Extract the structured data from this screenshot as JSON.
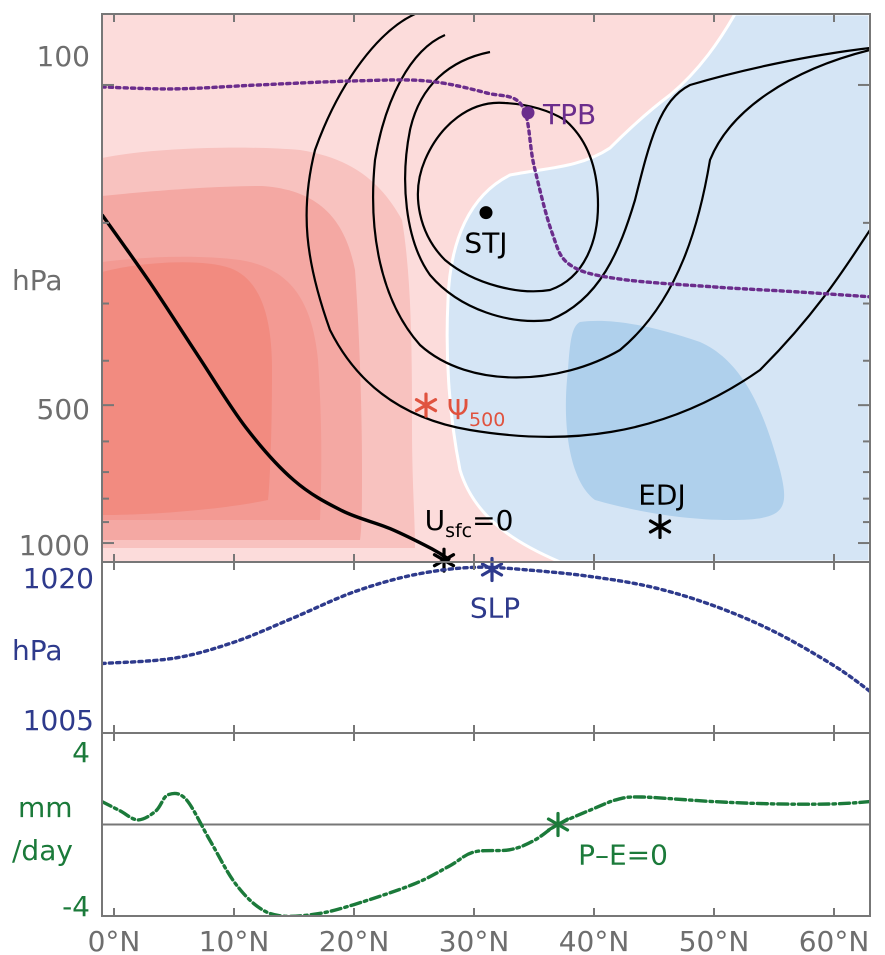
{
  "chart_data": [
    {
      "panel": "upper",
      "type": "contour",
      "ylabel": "hPa",
      "y_scale": "log",
      "y_inverted": true,
      "xlim": [
        -1,
        63
      ],
      "ylim": [
        1100,
        70
      ],
      "y_ticks": [
        {
          "value": 100,
          "label": "100"
        },
        {
          "value": 500,
          "label": "500"
        },
        {
          "value": 1000,
          "label": "1000"
        }
      ],
      "x_ticks": [
        0,
        10,
        20,
        30,
        40,
        50,
        60
      ],
      "fill_colors": {
        "positive": [
          "#fcdcdb",
          "#f8c2bf",
          "#f4a8a3",
          "#f28b80"
        ],
        "negative": [
          "#d5e5f5",
          "#afd0ec"
        ]
      },
      "zonal_wind_contours": [
        {
          "name": "outer",
          "points": [
            [
              8.5,
              70
            ],
            [
              1.5,
              120
            ],
            [
              0,
              170
            ],
            [
              1.5,
              240
            ],
            [
              6,
              330
            ],
            [
              11,
              430
            ],
            [
              17,
              560
            ],
            [
              24,
              700
            ],
            [
              27,
              840
            ],
            [
              28,
              900
            ]
          ]
        },
        {
          "name": "jet",
          "points": [
            [
              28,
              900
            ],
            [
              25.5,
              470
            ],
            [
              24,
              290
            ],
            [
              24.5,
              180
            ],
            [
              26.5,
              115
            ],
            [
              28.5,
              82
            ],
            [
              31,
              70
            ]
          ]
        }
      ],
      "series": [
        {
          "name": "TPB",
          "color": "#6b2d8c",
          "style": "dotted",
          "points": [
            [
              -1,
              101
            ],
            [
              5,
              102
            ],
            [
              12,
              100
            ],
            [
              20,
              98
            ],
            [
              26,
              98
            ],
            [
              31,
              104
            ],
            [
              34,
              111
            ],
            [
              35,
              150
            ],
            [
              36.5,
              210
            ],
            [
              38,
              247
            ],
            [
              42,
              265
            ],
            [
              50,
              276
            ],
            [
              56,
              282
            ],
            [
              63,
              290
            ]
          ]
        },
        {
          "name": "U_sfc=0",
          "color": "#000000",
          "style": "solid",
          "points": [
            [
              -1,
              192
            ],
            [
              3,
              270
            ],
            [
              7,
              390
            ],
            [
              11,
              560
            ],
            [
              15,
              730
            ],
            [
              19,
              850
            ],
            [
              23,
              930
            ],
            [
              26.5,
              1030
            ],
            [
              28,
              1090
            ]
          ]
        }
      ],
      "markers": [
        {
          "name": "TPB",
          "label": "TPB",
          "x": 34.5,
          "y": 115,
          "color": "#6b2d8c",
          "symbol": "dot"
        },
        {
          "name": "STJ",
          "label": "STJ",
          "x": 31,
          "y": 190,
          "color": "#000000",
          "symbol": "dot"
        },
        {
          "name": "Psi500",
          "label": "Ψ",
          "sub": "500",
          "x": 26,
          "y": 500,
          "color": "#e0533f",
          "symbol": "asterisk"
        },
        {
          "name": "EDJ",
          "label": "EDJ",
          "x": 45.5,
          "y": 920,
          "color": "#000000",
          "symbol": "asterisk"
        },
        {
          "name": "Usfc0",
          "label": "U",
          "sub": "sfc",
          "suffix": "=0",
          "x": 27.5,
          "y": 1090,
          "color": "#000000",
          "symbol": "asterisk"
        }
      ]
    },
    {
      "panel": "middle",
      "type": "line",
      "ylabel": "hPa",
      "ylim": [
        1005,
        1021
      ],
      "y_ticks": [
        1020,
        1005
      ],
      "color": "#2e3a8c",
      "series": [
        {
          "name": "SLP",
          "style": "dotted",
          "points": [
            [
              -1,
              1011.5
            ],
            [
              5,
              1012
            ],
            [
              10,
              1013.5
            ],
            [
              15,
              1015.8
            ],
            [
              20,
              1018.2
            ],
            [
              25,
              1019.8
            ],
            [
              30,
              1020.5
            ],
            [
              35,
              1020.2
            ],
            [
              40,
              1019.6
            ],
            [
              45,
              1018.6
            ],
            [
              50,
              1016.9
            ],
            [
              55,
              1014.5
            ],
            [
              60,
              1011.3
            ],
            [
              63,
              1008.9
            ]
          ]
        }
      ],
      "marker": {
        "label": "SLP",
        "x": 31.5,
        "y": 1020.3,
        "symbol": "asterisk"
      }
    },
    {
      "panel": "lower",
      "type": "line",
      "ylabel": "mm/day",
      "ylim": [
        -4,
        4
      ],
      "y_ticks": [
        4,
        -4
      ],
      "color": "#1b7a3a",
      "series": [
        {
          "name": "P-E",
          "style": "dashdot",
          "points": [
            [
              -1,
              1
            ],
            [
              0.5,
              0.6
            ],
            [
              2,
              0.2
            ],
            [
              3.5,
              0.6
            ],
            [
              4.5,
              1.3
            ],
            [
              6,
              1.1
            ],
            [
              8,
              -0.7
            ],
            [
              10,
              -2.5
            ],
            [
              12,
              -3.6
            ],
            [
              14,
              -4
            ],
            [
              17,
              -3.9
            ],
            [
              20,
              -3.5
            ],
            [
              25,
              -2.6
            ],
            [
              28,
              -1.8
            ],
            [
              30,
              -1.2
            ],
            [
              33,
              -1.1
            ],
            [
              35,
              -0.7
            ],
            [
              37,
              0
            ],
            [
              40,
              0.7
            ],
            [
              42,
              1.1
            ],
            [
              44,
              1.2
            ],
            [
              50,
              1
            ],
            [
              55,
              0.9
            ],
            [
              60,
              0.9
            ],
            [
              63,
              1
            ]
          ]
        }
      ],
      "zero_line": true,
      "marker": {
        "label": "P–E=0",
        "x": 37,
        "y": 0,
        "symbol": "asterisk"
      }
    }
  ],
  "labels": {
    "upper_y_100": "100",
    "upper_y_500": "500",
    "upper_y_1000": "1000",
    "upper_unit": "hPa",
    "mid_y_top": "1020",
    "mid_y_bottom": "1005",
    "mid_unit": "hPa",
    "low_y_top": "4",
    "low_y_bottom": "-4",
    "low_unit_1": "mm",
    "low_unit_2": "/day",
    "x_ticks": [
      "0°N",
      "10°N",
      "20°N",
      "30°N",
      "40°N",
      "50°N",
      "60°N"
    ]
  }
}
